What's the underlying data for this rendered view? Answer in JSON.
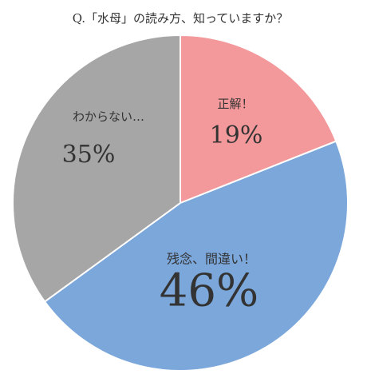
{
  "chart_data": {
    "type": "pie",
    "title": "Q.「水母」の読み方、知っていますか？",
    "categories": [
      "正解！",
      "残念、間違い！",
      "わからない…"
    ],
    "values": [
      19,
      46,
      35
    ],
    "value_labels": [
      "19%",
      "46%",
      "35%"
    ],
    "colors": [
      "#f4999b",
      "#7ba7db",
      "#a6a6a6"
    ]
  }
}
